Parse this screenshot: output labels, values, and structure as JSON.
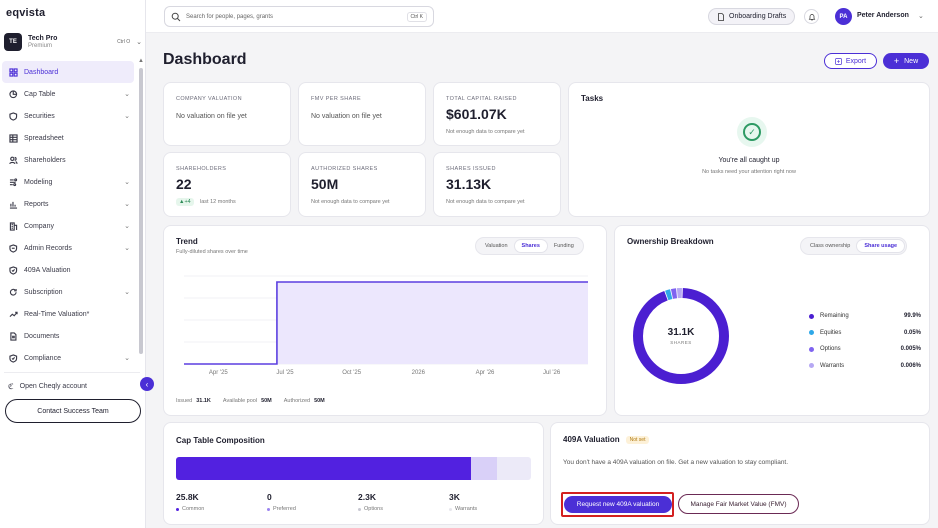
{
  "app": {
    "logo": "eqvista"
  },
  "org": {
    "initials": "TE",
    "name": "Tech Pro",
    "plan": "Premium",
    "shortcut": "Ctrl O"
  },
  "sidebar": {
    "items": [
      {
        "label": "Dashboard",
        "icon": "grid-icon",
        "chevron": false,
        "active": true
      },
      {
        "label": "Cap Table",
        "icon": "pie-icon",
        "chevron": true
      },
      {
        "label": "Securities",
        "icon": "shield-icon",
        "chevron": true
      },
      {
        "label": "Spreadsheet",
        "icon": "table-icon",
        "chevron": false
      },
      {
        "label": "Shareholders",
        "icon": "users-icon",
        "chevron": false
      },
      {
        "label": "Modeling",
        "icon": "model-icon",
        "chevron": true
      },
      {
        "label": "Reports",
        "icon": "bar-chart-icon",
        "chevron": true
      },
      {
        "label": "Company",
        "icon": "building-icon",
        "chevron": true
      },
      {
        "label": "Admin Records",
        "icon": "records-icon",
        "chevron": true
      },
      {
        "label": "409A Valuation",
        "icon": "badge-icon",
        "chevron": false
      },
      {
        "label": "Subscription",
        "icon": "refresh-icon",
        "chevron": true
      },
      {
        "label": "Real-Time Valuation*",
        "icon": "trend-icon",
        "chevron": false
      },
      {
        "label": "Documents",
        "icon": "document-icon",
        "chevron": false
      },
      {
        "label": "Compliance",
        "icon": "check-shield-icon",
        "chevron": true
      }
    ],
    "open_cheqly": "Open Cheqly account",
    "contact_button": "Contact Success Team"
  },
  "topbar": {
    "search_placeholder": "Search for people, pages, grants",
    "search_shortcut": "Ctrl K",
    "drafts_label": "Onboarding Drafts",
    "user_initials": "PA",
    "user_name": "Peter Anderson"
  },
  "header": {
    "title": "Dashboard",
    "export_label": "Export",
    "new_label": "New"
  },
  "stats": {
    "company_valuation": {
      "label": "COMPANY VALUATION",
      "value": "No valuation on file yet"
    },
    "fmv_per_share": {
      "label": "FMV PER SHARE",
      "value": "No valuation on file yet"
    },
    "total_capital": {
      "label": "TOTAL CAPITAL RAISED",
      "value": "$601.07K",
      "sub": "Not enough data to compare yet"
    },
    "shareholders": {
      "label": "SHAREHOLDERS",
      "value": "22",
      "badge": "▲+4",
      "sub": "last 12 months"
    },
    "authorized_shares": {
      "label": "AUTHORIZED SHARES",
      "value": "50M",
      "sub": "Not enough data to compare yet"
    },
    "shares_issued": {
      "label": "SHARES ISSUED",
      "value": "31.13K",
      "sub": "Not enough data to compare yet"
    }
  },
  "tasks": {
    "title": "Tasks",
    "empty_title": "You're all caught up",
    "empty_sub": "No tasks need your attention right now"
  },
  "trend": {
    "title": "Trend",
    "subtitle": "Fully-diluted shares over time",
    "tabs": [
      "Valuation",
      "Shares",
      "Funding"
    ],
    "active_tab": "Shares",
    "footer": [
      {
        "label": "Issued",
        "value": "31.1K"
      },
      {
        "label": "Available pool",
        "value": "50M"
      },
      {
        "label": "Authorized",
        "value": "50M"
      }
    ]
  },
  "chart_data": {
    "type": "area",
    "x_ticks": [
      "Apr '25",
      "Jul '25",
      "Oct '25",
      "2026",
      "Apr '26",
      "Jul '26"
    ],
    "series": [
      {
        "values": [
          0,
          0,
          1,
          1,
          1,
          1,
          1,
          1
        ]
      }
    ],
    "grid": true,
    "color": "#5b3fe0"
  },
  "ownership": {
    "title": "Ownership Breakdown",
    "tabs": [
      "Class ownership",
      "Share usage"
    ],
    "active_tab": "Share usage",
    "center_value": "31.1K",
    "center_label": "SHARES",
    "legend": [
      {
        "name": "Remaining",
        "value": "99.9%",
        "color": "#4b1fd1",
        "share": 0.94
      },
      {
        "name": "Equities",
        "value": "0.05%",
        "color": "#2ea8e8",
        "share": 0.02
      },
      {
        "name": "Options",
        "value": "0.005%",
        "color": "#7f63f0",
        "share": 0.02
      },
      {
        "name": "Warrants",
        "value": "0.006%",
        "color": "#b6a8f3",
        "share": 0.02
      }
    ]
  },
  "captable": {
    "title": "Cap Table Composition",
    "segments": [
      {
        "share": 0.83,
        "color": "#5221e0"
      },
      {
        "share": 0.075,
        "color": "#d9d0f8"
      },
      {
        "share": 0.095,
        "color": "#eceaf8"
      }
    ],
    "stats": [
      {
        "value": "25.8K",
        "label": "Common",
        "color": "#5221e0"
      },
      {
        "value": "0",
        "label": "Preferred",
        "color": "#9a82f0"
      },
      {
        "value": "2.3K",
        "label": "Options",
        "color": "#c8c8d2"
      },
      {
        "value": "3K",
        "label": "Warrants",
        "color": "#e6e6ec"
      }
    ]
  },
  "valuation": {
    "title": "409A Valuation",
    "badge": "Not set",
    "description": "You don't have a 409A valuation on file. Get a new valuation to stay compliant.",
    "request_button": "Request new 409A valuation",
    "fmv_button": "Manage Fair Market Value (FMV)"
  }
}
